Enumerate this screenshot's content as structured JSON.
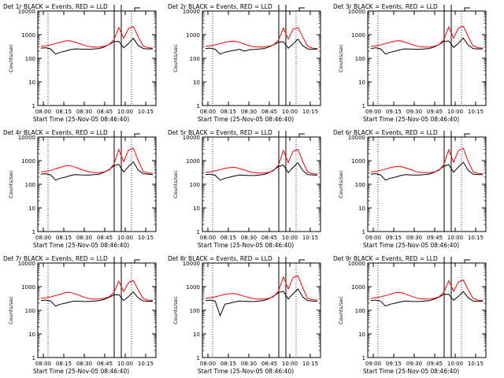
{
  "colors": {
    "events": "#000000",
    "lld": "#ff0000",
    "axes": "#000000"
  },
  "chart_data": [
    {
      "type": "line",
      "title": "Det 1r BLACK = Events, RED = LLD",
      "xlabel": "Start Time (25-Nov-05 08:46:40)",
      "ylabel": "Counts/sec",
      "xticks": [
        "08:00",
        "08:15",
        "08:30",
        "08:45",
        "10:00",
        "10:15"
      ],
      "yticks": [
        "1",
        "10",
        "100",
        "1000",
        "10000"
      ],
      "ylim": [
        1,
        10000
      ],
      "scale_y": "log",
      "series": [
        {
          "name": "Events",
          "values": [
            270,
            280,
            250,
            150,
            180,
            200,
            230,
            250,
            245,
            240,
            240,
            250,
            260,
            300,
            380,
            500,
            520,
            280,
            420,
            700,
            350,
            260,
            250,
            250
          ]
        },
        {
          "name": "LLD",
          "values": [
            320,
            340,
            370,
            420,
            480,
            540,
            550,
            480,
            410,
            350,
            310,
            300,
            300,
            320,
            380,
            600,
            2000,
            700,
            1800,
            2200,
            800,
            330,
            280,
            270
          ]
        }
      ]
    },
    {
      "type": "line",
      "title": "Det 2r BLACK = Events, RED = LLD",
      "xlabel": "Start Time (25-Nov-05 08:46:40)",
      "ylabel": "Counts/sec",
      "xticks": [
        "08:00",
        "08:15",
        "08:30",
        "08:45",
        "10:00",
        "10:15"
      ],
      "yticks": [
        "1",
        "10",
        "100",
        "1000",
        "10000"
      ],
      "ylim": [
        1,
        10000
      ],
      "scale_y": "log",
      "series": [
        {
          "name": "Events",
          "values": [
            260,
            270,
            240,
            150,
            180,
            200,
            220,
            240,
            200,
            230,
            235,
            245,
            255,
            300,
            370,
            480,
            500,
            270,
            400,
            650,
            340,
            250,
            240,
            240
          ]
        },
        {
          "name": "LLD",
          "values": [
            320,
            340,
            370,
            420,
            470,
            520,
            530,
            470,
            400,
            340,
            310,
            300,
            300,
            320,
            370,
            580,
            1900,
            650,
            1700,
            2000,
            780,
            320,
            270,
            260
          ]
        }
      ]
    },
    {
      "type": "line",
      "title": "Det 3r BLACK = Events, RED = LLD",
      "xlabel": "Start Time (25-Nov-05 08:46:40)",
      "ylabel": "Counts/sec",
      "xticks": [
        "09:00",
        "09:15",
        "09:30",
        "09:45",
        "10:00",
        "10:15"
      ],
      "yticks": [
        "1",
        "10",
        "100",
        "1000",
        "10000"
      ],
      "ylim": [
        1,
        10000
      ],
      "scale_y": "log",
      "series": [
        {
          "name": "Events",
          "values": [
            260,
            280,
            250,
            150,
            180,
            200,
            230,
            250,
            245,
            240,
            240,
            250,
            260,
            300,
            380,
            520,
            540,
            290,
            430,
            720,
            360,
            260,
            250,
            250
          ]
        },
        {
          "name": "LLD",
          "values": [
            320,
            340,
            370,
            420,
            480,
            540,
            550,
            480,
            410,
            350,
            310,
            300,
            300,
            320,
            380,
            620,
            2100,
            720,
            1900,
            2300,
            820,
            330,
            280,
            270
          ]
        }
      ]
    },
    {
      "type": "line",
      "title": "Det 4r BLACK = Events, RED = LLD",
      "xlabel": "Start Time (25-Nov-05 08:46:40)",
      "ylabel": "Counts/sec",
      "xticks": [
        "08:00",
        "08:15",
        "08:30",
        "08:45",
        "10:00",
        "10:15"
      ],
      "yticks": [
        "1",
        "10",
        "100",
        "1000",
        "10000"
      ],
      "ylim": [
        1,
        10000
      ],
      "scale_y": "log",
      "series": [
        {
          "name": "Events",
          "values": [
            270,
            280,
            250,
            150,
            180,
            200,
            230,
            260,
            250,
            245,
            245,
            255,
            270,
            320,
            420,
            600,
            700,
            330,
            560,
            900,
            400,
            280,
            270,
            260
          ]
        },
        {
          "name": "LLD",
          "values": [
            330,
            350,
            390,
            450,
            520,
            600,
            620,
            530,
            450,
            380,
            330,
            310,
            310,
            330,
            400,
            700,
            3000,
            900,
            2800,
            3400,
            1000,
            350,
            300,
            290
          ]
        }
      ]
    },
    {
      "type": "line",
      "title": "Det 5r BLACK = Events, RED = LLD",
      "xlabel": "Start Time (25-Nov-05 08:46:40)",
      "ylabel": "Counts/sec",
      "xticks": [
        "08:00",
        "08:15",
        "08:30",
        "08:45",
        "10:00",
        "10:15"
      ],
      "yticks": [
        "1",
        "10",
        "100",
        "1000",
        "10000"
      ],
      "ylim": [
        1,
        10000
      ],
      "scale_y": "log",
      "series": [
        {
          "name": "Events",
          "values": [
            260,
            270,
            240,
            150,
            180,
            200,
            225,
            245,
            240,
            235,
            235,
            245,
            260,
            310,
            400,
            560,
            650,
            310,
            520,
            820,
            380,
            260,
            250,
            245
          ]
        },
        {
          "name": "LLD",
          "values": [
            320,
            340,
            370,
            420,
            470,
            510,
            520,
            460,
            400,
            340,
            310,
            300,
            300,
            320,
            380,
            650,
            2700,
            820,
            2500,
            3000,
            900,
            330,
            280,
            270
          ]
        }
      ]
    },
    {
      "type": "line",
      "title": "Det 6r BLACK = Events, RED = LLD",
      "xlabel": "Start Time (25-Nov-05 08:46:40)",
      "ylabel": "Counts/sec",
      "xticks": [
        "09:00",
        "09:15",
        "09:30",
        "09:45",
        "10:00",
        "10:15"
      ],
      "yticks": [
        "1",
        "10",
        "100",
        "1000",
        "10000"
      ],
      "ylim": [
        1,
        10000
      ],
      "scale_y": "log",
      "series": [
        {
          "name": "Events",
          "values": [
            270,
            280,
            250,
            150,
            180,
            200,
            230,
            255,
            250,
            245,
            245,
            255,
            270,
            320,
            410,
            580,
            680,
            320,
            540,
            860,
            390,
            270,
            260,
            255
          ]
        },
        {
          "name": "LLD",
          "values": [
            330,
            350,
            390,
            440,
            500,
            560,
            570,
            500,
            430,
            360,
            320,
            310,
            310,
            330,
            390,
            680,
            2900,
            860,
            2700,
            3300,
            950,
            340,
            290,
            280
          ]
        }
      ]
    },
    {
      "type": "line",
      "title": "Det 7r BLACK = Events, RED = LLD",
      "xlabel": "Start Time (25-Nov-05 08:46:40)",
      "ylabel": "Counts/sec",
      "xticks": [
        "08:00",
        "08:15",
        "08:30",
        "08:45",
        "10:00",
        "10:15"
      ],
      "yticks": [
        "1",
        "10",
        "100",
        "1000",
        "10000"
      ],
      "ylim": [
        1,
        10000
      ],
      "scale_y": "log",
      "series": [
        {
          "name": "Events",
          "values": [
            260,
            270,
            245,
            150,
            180,
            200,
            225,
            245,
            240,
            235,
            235,
            245,
            255,
            290,
            350,
            450,
            460,
            260,
            380,
            600,
            330,
            250,
            240,
            240
          ]
        },
        {
          "name": "LLD",
          "values": [
            320,
            340,
            370,
            420,
            480,
            560,
            580,
            490,
            420,
            350,
            310,
            300,
            300,
            320,
            370,
            560,
            1700,
            620,
            1500,
            1800,
            720,
            320,
            270,
            260
          ]
        }
      ]
    },
    {
      "type": "line",
      "title": "Det 8r BLACK = Events, RED = LLD",
      "xlabel": "Start Time (25-Nov-05 08:46:40)",
      "ylabel": "Counts/sec",
      "xticks": [
        "08:00",
        "08:15",
        "08:30",
        "08:45",
        "10:00",
        "10:15"
      ],
      "yticks": [
        "1",
        "10",
        "100",
        "1000",
        "10000"
      ],
      "ylim": [
        1,
        10000
      ],
      "scale_y": "log",
      "series": [
        {
          "name": "Events",
          "values": [
            260,
            270,
            245,
            60,
            180,
            200,
            225,
            245,
            240,
            235,
            235,
            245,
            260,
            310,
            400,
            560,
            640,
            300,
            500,
            800,
            370,
            255,
            245,
            240
          ]
        },
        {
          "name": "LLD",
          "values": [
            320,
            340,
            370,
            420,
            470,
            500,
            510,
            450,
            390,
            340,
            310,
            300,
            300,
            320,
            380,
            640,
            2600,
            800,
            2400,
            2900,
            880,
            320,
            280,
            270
          ]
        }
      ]
    },
    {
      "type": "line",
      "title": "Det 9r BLACK = Events, RED = LLD",
      "xlabel": "Start Time (25-Nov-05 08:46:40)",
      "ylabel": "Counts/sec",
      "xticks": [
        "09:00",
        "09:15",
        "09:30",
        "09:45",
        "10:00",
        "10:15"
      ],
      "yticks": [
        "1",
        "10",
        "100",
        "1000",
        "10000"
      ],
      "ylim": [
        1,
        10000
      ],
      "scale_y": "log",
      "series": [
        {
          "name": "Events",
          "values": [
            260,
            270,
            245,
            150,
            180,
            200,
            225,
            245,
            240,
            235,
            235,
            245,
            255,
            295,
            360,
            470,
            480,
            265,
            390,
            620,
            335,
            250,
            240,
            240
          ]
        },
        {
          "name": "LLD",
          "values": [
            320,
            340,
            370,
            420,
            480,
            560,
            570,
            490,
            420,
            350,
            310,
            300,
            300,
            320,
            370,
            580,
            1800,
            640,
            1600,
            1900,
            740,
            320,
            270,
            260
          ]
        }
      ]
    }
  ]
}
